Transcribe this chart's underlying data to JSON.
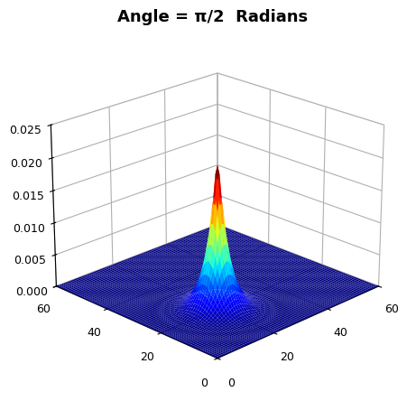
{
  "title": "Angle = π/2  Radians",
  "xlim": [
    0,
    60
  ],
  "ylim": [
    0,
    60
  ],
  "zlim": [
    0,
    0.025
  ],
  "peak_x": 20,
  "peak_y": 20,
  "sigma_narrow": 3.0,
  "sigma_wide": 12.0,
  "amplitude": 0.022,
  "n_points": 80,
  "colormap": "jet",
  "background_color": "#ffffff",
  "elev": 22,
  "azim": -135
}
